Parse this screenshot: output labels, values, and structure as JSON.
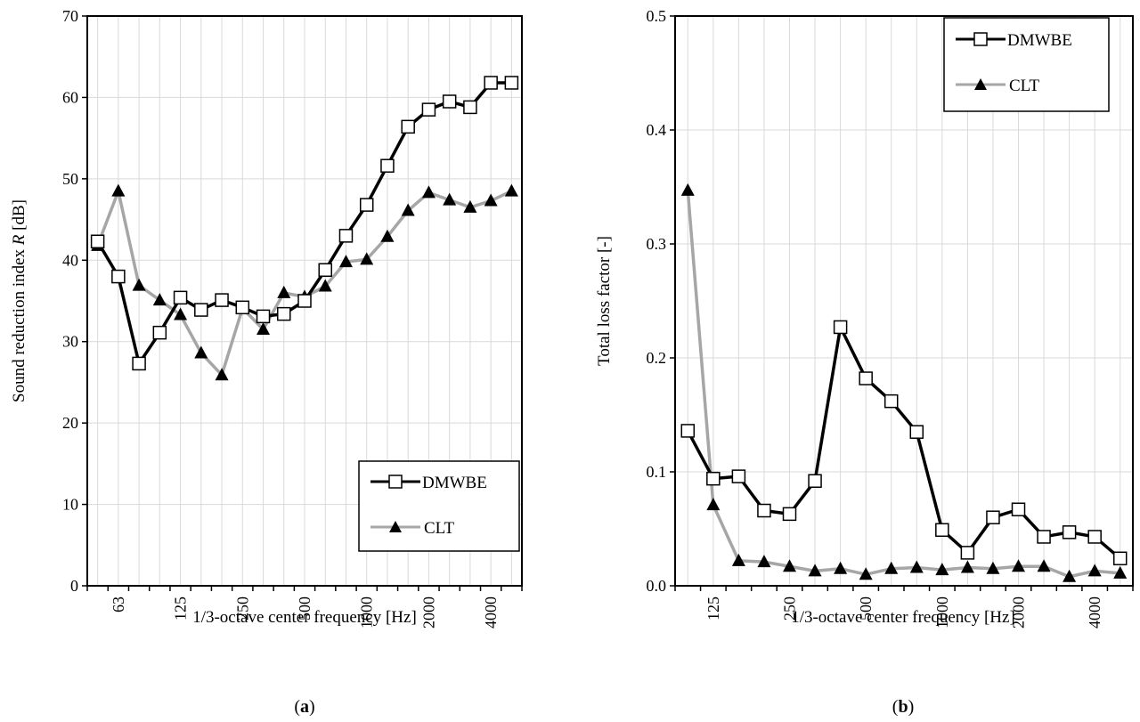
{
  "chart_data": [
    {
      "type": "line",
      "panel_label": "a",
      "xlabel": "1/3-octave center frequency [Hz]",
      "ylabel": "Sound reduction index R [dB]",
      "ylabel_plain": "Sound reduction index ",
      "ylabel_symbol": "R",
      "ylabel_unit": " [dB]",
      "ylim": [
        0,
        70
      ],
      "yticks": [
        0,
        10,
        20,
        30,
        40,
        50,
        60,
        70
      ],
      "x": [
        50,
        63,
        80,
        100,
        125,
        160,
        200,
        250,
        315,
        400,
        500,
        630,
        800,
        1000,
        1250,
        1600,
        2000,
        2500,
        3150,
        4000,
        5000
      ],
      "xtick_labels": [
        "63",
        "125",
        "250",
        "500",
        "1000",
        "2000",
        "4000"
      ],
      "grid": true,
      "legend_position": "bottom-right",
      "series": [
        {
          "name": "DMWBE",
          "marker": "open-square",
          "color": "#000000",
          "values": [
            42.3,
            38.0,
            27.3,
            31.1,
            35.4,
            33.9,
            35.1,
            34.2,
            33.1,
            33.4,
            35.0,
            38.8,
            43.0,
            46.8,
            51.6,
            56.4,
            58.5,
            59.5,
            58.8,
            61.8,
            61.8
          ]
        },
        {
          "name": "CLT",
          "marker": "filled-triangle",
          "color": "#a6a6a6",
          "values": [
            41.8,
            48.5,
            36.9,
            35.1,
            33.3,
            28.6,
            25.9,
            34.1,
            31.5,
            36.0,
            35.5,
            36.8,
            39.8,
            40.1,
            42.9,
            46.1,
            48.3,
            47.4,
            46.5,
            47.3,
            48.5
          ]
        }
      ]
    },
    {
      "type": "line",
      "panel_label": "b",
      "xlabel": "1/3-octave center frequency [Hz]",
      "ylabel": "Total loss factor [-]",
      "ylim": [
        0,
        0.5
      ],
      "yticks": [
        "0.0",
        "0.1",
        "0.2",
        "0.3",
        "0.4",
        "0.5"
      ],
      "x": [
        100,
        125,
        160,
        200,
        250,
        315,
        400,
        500,
        630,
        800,
        1000,
        1250,
        1600,
        2000,
        2500,
        3150,
        4000,
        5000
      ],
      "xtick_labels": [
        "125",
        "250",
        "500",
        "1000",
        "2000",
        "4000"
      ],
      "grid": true,
      "legend_position": "top-right",
      "series": [
        {
          "name": "DMWBE",
          "marker": "open-square",
          "color": "#000000",
          "values": [
            0.136,
            0.094,
            0.096,
            0.066,
            0.063,
            0.092,
            0.227,
            0.182,
            0.162,
            0.135,
            0.049,
            0.029,
            0.06,
            0.067,
            0.043,
            0.047,
            0.043,
            0.024
          ]
        },
        {
          "name": "CLT",
          "marker": "filled-triangle",
          "color": "#a6a6a6",
          "values": [
            0.347,
            0.071,
            0.022,
            0.021,
            0.017,
            0.013,
            0.015,
            0.01,
            0.015,
            0.016,
            0.014,
            0.016,
            0.015,
            0.017,
            0.017,
            0.008,
            0.013,
            0.011
          ]
        }
      ]
    }
  ],
  "captions": {
    "a": "a",
    "b": "b"
  }
}
